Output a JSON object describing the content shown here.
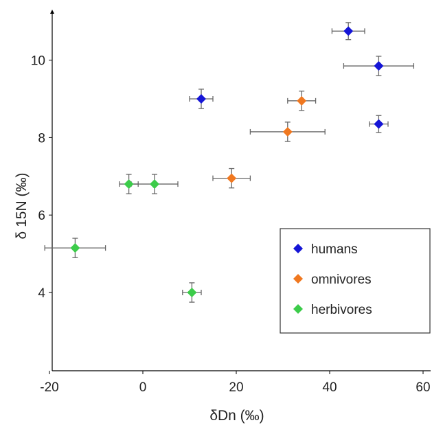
{
  "chart_data": {
    "type": "scatter",
    "xlabel": "δDn (‰)",
    "ylabel": "δ 15N (‰)",
    "xlim": [
      -20,
      60
    ],
    "ylim": [
      2,
      11.5
    ],
    "xticks": [
      "-20",
      "0",
      "20",
      "40",
      "60"
    ],
    "yticks": [
      "4",
      "6",
      "8",
      "10"
    ],
    "grid": false,
    "legend_position": "bottom-right",
    "series": [
      {
        "name": "humans",
        "color": "#1515d6",
        "points": [
          {
            "x": 12.5,
            "y": 9.0,
            "xerr": 2.5,
            "yerr": 0.25
          },
          {
            "x": 44.0,
            "y": 10.75,
            "xerr": 3.5,
            "yerr": 0.22
          },
          {
            "x": 50.5,
            "y": 9.85,
            "xerr": 7.5,
            "yerr": 0.25
          },
          {
            "x": 50.5,
            "y": 8.35,
            "xerr": 2.0,
            "yerr": 0.22
          }
        ]
      },
      {
        "name": "omnivores",
        "color": "#f07820",
        "points": [
          {
            "x": 19.0,
            "y": 6.95,
            "xerr": 4.0,
            "yerr": 0.25
          },
          {
            "x": 31.0,
            "y": 8.15,
            "xerr": 8.0,
            "yerr": 0.25
          },
          {
            "x": 34.0,
            "y": 8.95,
            "xerr": 3.0,
            "yerr": 0.25
          }
        ]
      },
      {
        "name": "herbivores",
        "color": "#3ccc4a",
        "points": [
          {
            "x": -14.5,
            "y": 5.15,
            "xerr": 6.5,
            "yerr": 0.25
          },
          {
            "x": -3.0,
            "y": 6.8,
            "xerr": 2.0,
            "yerr": 0.25
          },
          {
            "x": 2.5,
            "y": 6.8,
            "xerr": 5.0,
            "yerr": 0.25
          },
          {
            "x": 10.5,
            "y": 4.0,
            "xerr": 2.0,
            "yerr": 0.25
          }
        ]
      }
    ]
  }
}
